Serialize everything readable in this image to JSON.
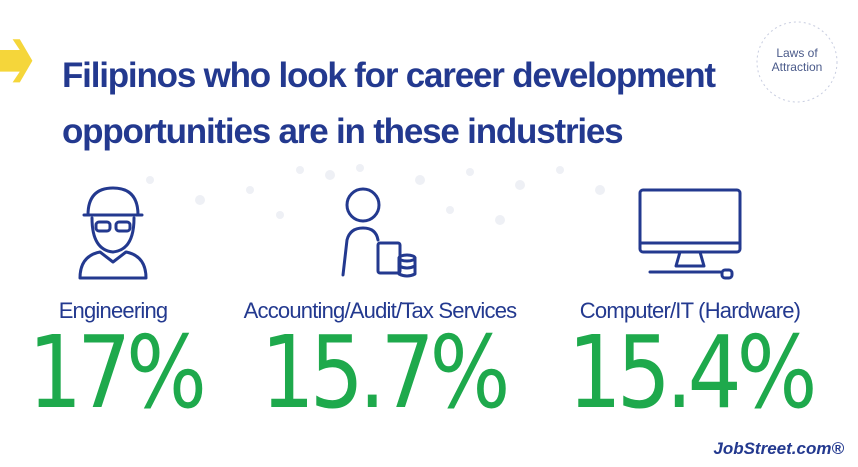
{
  "header": {
    "title_lines": [
      "Filipinos who look for career development",
      "opportunities are in these industries"
    ]
  },
  "badge": {
    "lines": [
      "Laws of",
      "Attraction"
    ]
  },
  "items": [
    {
      "label": "Engineering",
      "value": "17%"
    },
    {
      "label": "Accounting/Audit/Tax Services",
      "value": "15.7%"
    },
    {
      "label": "Computer/IT (Hardware)",
      "value": "15.4%"
    }
  ],
  "footer": {
    "logo": "JobStreet.com®"
  }
}
